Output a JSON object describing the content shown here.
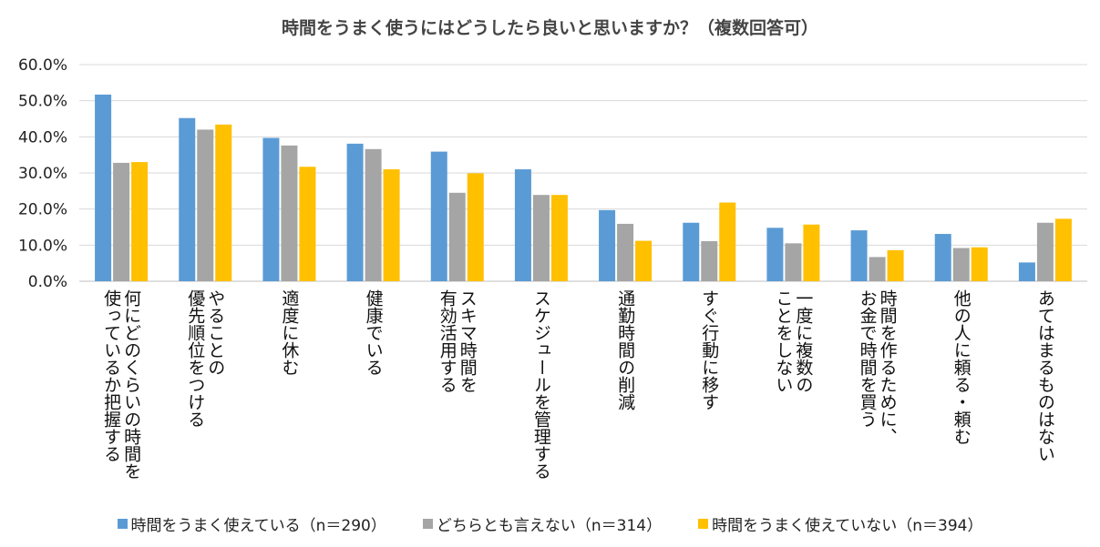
{
  "chart_data": {
    "type": "bar",
    "title": "時間をうまく使うにはどうしたら良いと思いますか？（複数回答可）",
    "xlabel": "",
    "ylabel": "",
    "ylim": [
      0,
      60
    ],
    "ytick_labels": [
      "0.0%",
      "10.0%",
      "20.0%",
      "30.0%",
      "40.0%",
      "50.0%",
      "60.0%"
    ],
    "grid": true,
    "legend_position": "bottom",
    "categories": [
      "何にどのくらいの時間を\n使っているか把握する",
      "やることの\n優先順位をつける",
      "適度に休む",
      "健康でいる",
      "スキマ時間を\n有効活用する",
      "スケジュールを管理する",
      "通勤時間の削減",
      "すぐ行動に移す",
      "一度に複数の\nことをしない",
      "時間を作るために、\nお金で時間を買う",
      "他の人に頼る・頼む",
      "あてはまるものはない"
    ],
    "series": [
      {
        "name": "時間をうまく使えている（n＝290）",
        "color": "#5b9bd5",
        "values": [
          51.7,
          45.2,
          39.7,
          38.1,
          35.9,
          31.0,
          19.7,
          16.2,
          14.8,
          14.1,
          13.1,
          5.2
        ]
      },
      {
        "name": "どちらとも言えない（n＝314）",
        "color": "#a5a5a5",
        "values": [
          32.8,
          42.0,
          37.6,
          36.6,
          24.5,
          23.9,
          15.9,
          11.1,
          10.5,
          6.7,
          9.2,
          16.2
        ]
      },
      {
        "name": "時間をうまく使えていない（n＝394）",
        "color": "#ffc000",
        "values": [
          33.0,
          43.4,
          31.7,
          31.0,
          29.9,
          23.9,
          11.2,
          21.8,
          15.7,
          8.6,
          9.4,
          17.3
        ]
      }
    ]
  }
}
